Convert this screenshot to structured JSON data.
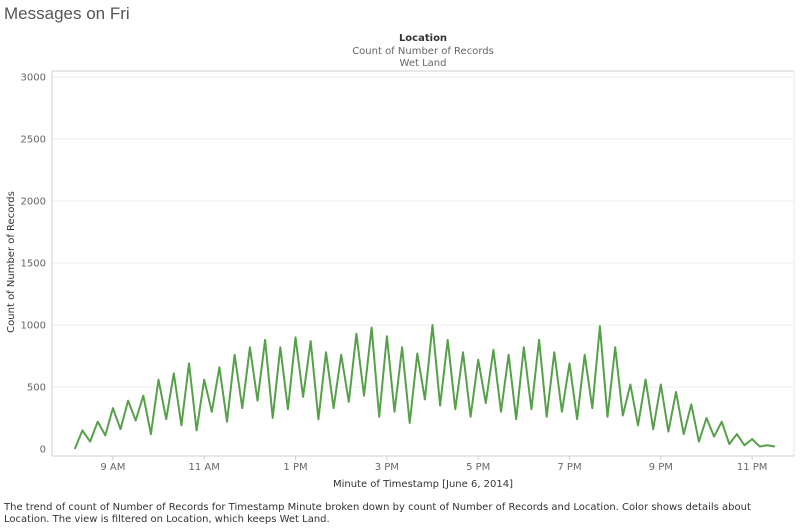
{
  "title": "Messages on Fri",
  "header": {
    "dimension": "Location",
    "measure": "Count of Number of Records",
    "value": "Wet Land"
  },
  "caption": "The trend of count of Number of Records for Timestamp Minute broken down by count of Number of Records and Location.  Color shows details about Location. The view is filtered on Location, which keeps Wet Land.",
  "colors": {
    "line": "#57a04a",
    "grid": "#ececec",
    "axis": "#cfcfcf"
  },
  "chart_data": {
    "type": "line",
    "xlabel": "Minute of Timestamp [June 6, 2014]",
    "ylabel": "Count of Number of Records",
    "ylim": [
      0,
      3100
    ],
    "xlim": [
      "7:40 AM",
      "11:55 PM"
    ],
    "yticks": [
      0,
      500,
      1000,
      1500,
      2000,
      2500,
      3000
    ],
    "xticks": [
      "9 AM",
      "11 AM",
      "1 PM",
      "3 PM",
      "5 PM",
      "7 PM",
      "9 PM",
      "11 PM"
    ],
    "grid": true,
    "series": [
      {
        "x": [
          "8:10 AM",
          "8:20 AM",
          "8:30 AM",
          "8:40 AM",
          "8:50 AM",
          "9:00 AM",
          "9:10 AM",
          "9:20 AM",
          "9:30 AM",
          "9:40 AM",
          "9:50 AM",
          "10:00 AM",
          "10:10 AM",
          "10:20 AM",
          "10:30 AM",
          "10:40 AM",
          "10:50 AM",
          "11:00 AM",
          "11:10 AM",
          "11:20 AM",
          "11:30 AM",
          "11:40 AM",
          "11:50 AM",
          "12:00 PM",
          "12:10 PM",
          "12:20 PM",
          "12:30 PM",
          "12:40 PM",
          "12:50 PM",
          "1:00 PM",
          "1:10 PM",
          "1:20 PM",
          "1:30 PM",
          "1:40 PM",
          "1:50 PM",
          "2:00 PM",
          "2:10 PM",
          "2:20 PM",
          "2:30 PM",
          "2:40 PM",
          "2:50 PM",
          "3:00 PM",
          "3:10 PM",
          "3:20 PM",
          "3:30 PM",
          "3:40 PM",
          "3:50 PM",
          "4:00 PM",
          "4:10 PM",
          "4:20 PM",
          "4:30 PM",
          "4:40 PM",
          "4:50 PM",
          "5:00 PM",
          "5:10 PM",
          "5:20 PM",
          "5:30 PM",
          "5:40 PM",
          "5:50 PM",
          "6:00 PM",
          "6:10 PM",
          "6:20 PM",
          "6:30 PM",
          "6:40 PM",
          "6:50 PM",
          "7:00 PM",
          "7:10 PM",
          "7:20 PM",
          "7:30 PM",
          "7:40 PM",
          "7:50 PM",
          "8:00 PM",
          "8:10 PM",
          "8:20 PM",
          "8:30 PM",
          "8:40 PM",
          "8:50 PM",
          "9:00 PM",
          "9:10 PM",
          "9:20 PM",
          "9:30 PM",
          "9:40 PM",
          "9:50 PM",
          "10:00 PM",
          "10:10 PM",
          "10:20 PM",
          "10:30 PM",
          "10:40 PM",
          "10:50 PM",
          "11:00 PM",
          "11:10 PM",
          "11:20 PM",
          "11:30 PM"
        ],
        "values": [
          0,
          150,
          60,
          220,
          110,
          330,
          160,
          390,
          230,
          430,
          120,
          560,
          240,
          610,
          190,
          690,
          150,
          560,
          300,
          660,
          220,
          760,
          330,
          820,
          390,
          880,
          250,
          820,
          320,
          900,
          420,
          870,
          240,
          780,
          330,
          760,
          380,
          930,
          430,
          980,
          260,
          910,
          300,
          820,
          210,
          770,
          400,
          1000,
          350,
          880,
          320,
          780,
          260,
          720,
          370,
          800,
          300,
          760,
          240,
          820,
          320,
          880,
          260,
          780,
          300,
          690,
          240,
          760,
          330,
          990,
          260,
          820,
          270,
          520,
          190,
          560,
          160,
          520,
          140,
          460,
          120,
          360,
          60,
          250,
          100,
          220,
          40,
          120,
          30,
          80,
          20,
          30,
          20
        ]
      }
    ]
  }
}
